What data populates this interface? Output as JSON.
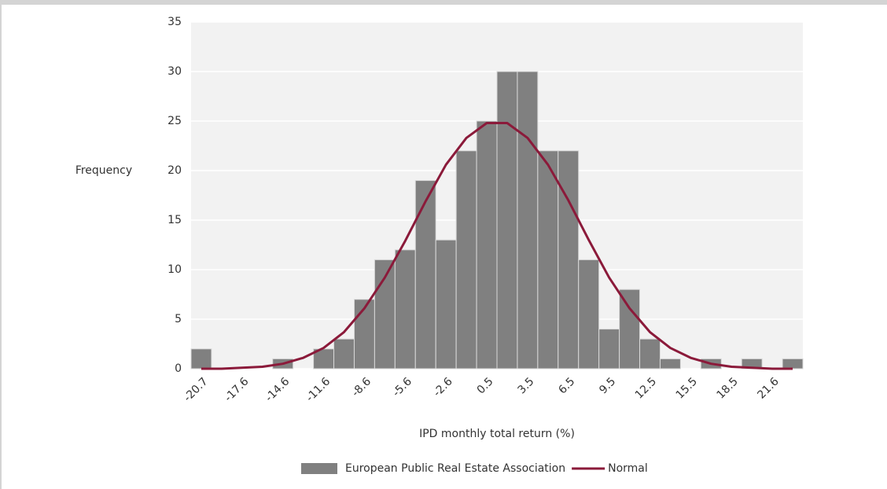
{
  "chart_data": {
    "type": "bar",
    "x_label": "IPD monthly total return (%)",
    "y_label": "Frequency",
    "categories": [
      "-20.7",
      null,
      "-17.6",
      null,
      "-14.6",
      null,
      "-11.6",
      null,
      "-8.6",
      null,
      "-5.6",
      null,
      "-2.6",
      null,
      "0.5",
      null,
      "3.5",
      null,
      "6.5",
      null,
      "9.5",
      null,
      "12.5",
      null,
      "15.5",
      null,
      "18.5",
      null,
      "21.6",
      null
    ],
    "series": [
      {
        "name": "European Public Real Estate Association",
        "type": "bar",
        "color": "#808080",
        "values": [
          2,
          0,
          0,
          0,
          1,
          0,
          2,
          3,
          7,
          11,
          12,
          19,
          13,
          22,
          25,
          30,
          30,
          22,
          22,
          11,
          4,
          8,
          3,
          1,
          0,
          1,
          0,
          1,
          0,
          1
        ]
      },
      {
        "name": "Normal",
        "type": "line",
        "color": "#8b1a3a",
        "values": [
          0,
          0,
          0.1,
          0.2,
          0.5,
          1.1,
          2.1,
          3.7,
          6.1,
          9.2,
          12.9,
          16.9,
          20.6,
          23.3,
          24.8,
          24.8,
          23.3,
          20.6,
          17,
          13,
          9.2,
          6.1,
          3.7,
          2.1,
          1.1,
          0.5,
          0.2,
          0.1,
          0,
          0
        ]
      }
    ],
    "ylim": [
      0,
      35
    ],
    "yticks": [
      0,
      5,
      10,
      15,
      20,
      25,
      30,
      35
    ],
    "grid": true
  }
}
